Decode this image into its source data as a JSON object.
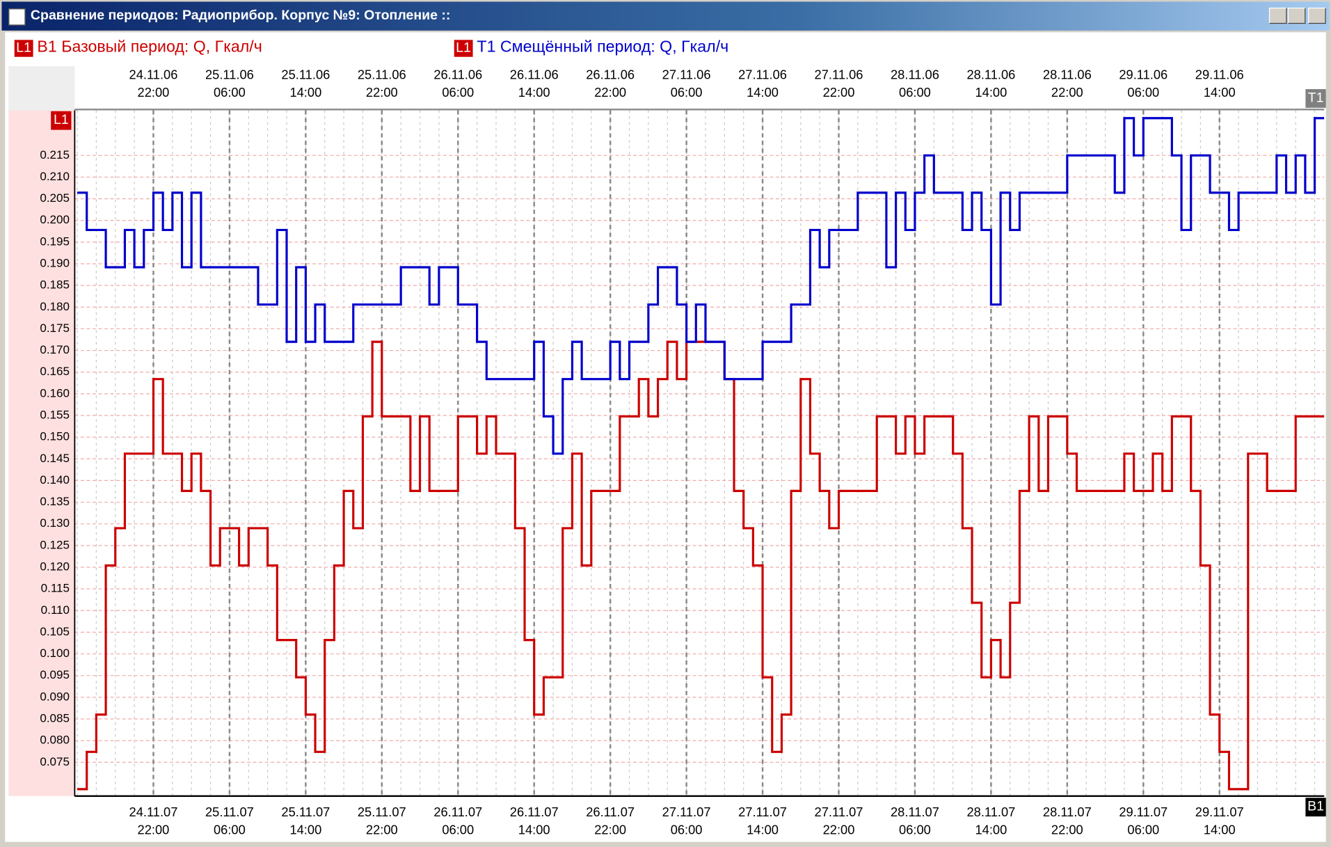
{
  "window_title": "Сравнение периодов: Радиоприбор. Корпус №9: Отопление ::",
  "chart_data": {
    "type": "line",
    "y_axis_label": "L1",
    "x_axis_label": "T1",
    "x2_axis_label": "B1",
    "xlim": [
      "24.11.06 14:00",
      "30.11.06 01:00"
    ],
    "x2lim": [
      "24.11.07 14:00",
      "30.11.07 01:00"
    ],
    "xticks": [
      "24.11.06 22:00",
      "25.11.06 06:00",
      "25.11.06 14:00",
      "25.11.06 22:00",
      "26.11.06 06:00",
      "26.11.06 14:00",
      "26.11.06 22:00",
      "27.11.06 06:00",
      "27.11.06 14:00",
      "27.11.06 22:00",
      "28.11.06 06:00",
      "28.11.06 14:00",
      "28.11.06 22:00",
      "29.11.06 06:00",
      "29.11.06 14:00"
    ],
    "x2ticks": [
      "24.11.07 22:00",
      "25.11.07 06:00",
      "25.11.07 14:00",
      "25.11.07 22:00",
      "26.11.07 06:00",
      "26.11.07 14:00",
      "26.11.07 22:00",
      "27.11.07 06:00",
      "27.11.07 14:00",
      "27.11.07 22:00",
      "28.11.07 06:00",
      "28.11.07 14:00",
      "28.11.07 22:00",
      "29.11.07 06:00",
      "29.11.07 14:00"
    ],
    "ylim": [
      0.0672,
      0.2254
    ],
    "yticks": [
      0.075,
      {
        "value": 0.08,
        "label": "0.080"
      },
      0.085,
      {
        "value": 0.09,
        "label": "0.090"
      },
      0.095,
      {
        "value": 0.1,
        "label": "0.100"
      },
      0.105,
      {
        "value": 0.11,
        "label": "0.110"
      },
      0.115,
      {
        "value": 0.12,
        "label": "0.120"
      },
      0.125,
      {
        "value": 0.13,
        "label": "0.130"
      },
      0.135,
      {
        "value": 0.14,
        "label": "0.140"
      },
      0.145,
      {
        "value": 0.15,
        "label": "0.150"
      },
      0.155,
      {
        "value": 0.16,
        "label": "0.160"
      },
      0.165,
      {
        "value": 0.17,
        "label": "0.170"
      },
      0.175,
      {
        "value": 0.18,
        "label": "0.180"
      },
      0.185,
      {
        "value": 0.19,
        "label": "0.190"
      },
      0.195,
      {
        "value": 0.2,
        "label": "0.200"
      },
      0.205,
      {
        "value": 0.21,
        "label": "0.210"
      },
      0.215
    ],
    "grid": true,
    "series": [
      {
        "name": "B1 Базовый период: Q, Гкал/ч",
        "marker_label": "L1",
        "color": "#cc0000",
        "axis": "x2",
        "x": [
          "24.11.07 14:00",
          "24.11.07 15:00",
          "24.11.07 16:00",
          "24.11.07 17:00",
          "24.11.07 18:00",
          "24.11.07 19:00",
          "24.11.07 20:00",
          "24.11.07 21:00",
          "24.11.07 22:00",
          "24.11.07 23:00",
          "25.11.07 00:00",
          "25.11.07 01:00",
          "25.11.07 02:00",
          "25.11.07 03:00",
          "25.11.07 04:00",
          "25.11.07 05:00",
          "25.11.07 06:00",
          "25.11.07 07:00",
          "25.11.07 08:00",
          "25.11.07 09:00",
          "25.11.07 10:00",
          "25.11.07 11:00",
          "25.11.07 12:00",
          "25.11.07 13:00",
          "25.11.07 14:00",
          "25.11.07 15:00",
          "25.11.07 16:00",
          "25.11.07 17:00",
          "25.11.07 18:00",
          "25.11.07 19:00",
          "25.11.07 20:00",
          "25.11.07 21:00",
          "25.11.07 22:00",
          "25.11.07 23:00",
          "26.11.07 00:00",
          "26.11.07 01:00",
          "26.11.07 02:00",
          "26.11.07 03:00",
          "26.11.07 04:00",
          "26.11.07 05:00",
          "26.11.07 06:00",
          "26.11.07 07:00",
          "26.11.07 08:00",
          "26.11.07 09:00",
          "26.11.07 10:00",
          "26.11.07 11:00",
          "26.11.07 12:00",
          "26.11.07 13:00",
          "26.11.07 14:00",
          "26.11.07 15:00",
          "26.11.07 16:00",
          "26.11.07 17:00",
          "26.11.07 18:00",
          "26.11.07 19:00",
          "26.11.07 20:00",
          "26.11.07 21:00",
          "26.11.07 22:00",
          "26.11.07 23:00",
          "27.11.07 00:00",
          "27.11.07 01:00",
          "27.11.07 02:00",
          "27.11.07 03:00",
          "27.11.07 04:00",
          "27.11.07 05:00",
          "27.11.07 06:00",
          "27.11.07 07:00",
          "27.11.07 08:00",
          "27.11.07 09:00",
          "27.11.07 10:00",
          "27.11.07 11:00",
          "27.11.07 12:00",
          "27.11.07 13:00",
          "27.11.07 14:00",
          "27.11.07 15:00",
          "27.11.07 16:00",
          "27.11.07 17:00",
          "27.11.07 18:00",
          "27.11.07 19:00",
          "27.11.07 20:00",
          "27.11.07 21:00",
          "27.11.07 22:00",
          "27.11.07 23:00",
          "28.11.07 00:00",
          "28.11.07 01:00",
          "28.11.07 02:00",
          "28.11.07 03:00",
          "28.11.07 04:00",
          "28.11.07 05:00",
          "28.11.07 06:00",
          "28.11.07 07:00",
          "28.11.07 08:00",
          "28.11.07 09:00",
          "28.11.07 10:00",
          "28.11.07 11:00",
          "28.11.07 12:00",
          "28.11.07 13:00",
          "28.11.07 14:00",
          "28.11.07 15:00",
          "28.11.07 16:00",
          "28.11.07 17:00",
          "28.11.07 18:00",
          "28.11.07 19:00",
          "28.11.07 20:00",
          "28.11.07 21:00",
          "28.11.07 22:00",
          "28.11.07 23:00",
          "29.11.07 00:00",
          "29.11.07 01:00",
          "29.11.07 02:00",
          "29.11.07 03:00",
          "29.11.07 04:00",
          "29.11.07 05:00",
          "29.11.07 06:00",
          "29.11.07 07:00",
          "29.11.07 08:00",
          "29.11.07 09:00",
          "29.11.07 10:00",
          "29.11.07 11:00",
          "29.11.07 12:00",
          "29.11.07 13:00",
          "29.11.07 14:00",
          "29.11.07 15:00",
          "29.11.07 16:00",
          "29.11.07 17:00",
          "29.11.07 18:00",
          "29.11.07 19:00",
          "29.11.07 20:00",
          "29.11.07 21:00",
          "29.11.07 22:00",
          "29.11.07 23:00",
          "30.11.07 00:00"
        ],
        "values": [
          0.0688,
          0.0774,
          0.086,
          0.1204,
          0.129,
          0.1462,
          0.1462,
          0.1462,
          0.1634,
          0.1462,
          0.1462,
          0.1376,
          0.1462,
          0.1376,
          0.1204,
          0.129,
          0.129,
          0.1204,
          0.129,
          0.129,
          0.1204,
          0.1032,
          0.1032,
          0.0946,
          0.086,
          0.0774,
          0.1032,
          0.1204,
          0.1376,
          0.129,
          0.1548,
          0.172,
          0.1548,
          0.1548,
          0.1548,
          0.1376,
          0.1548,
          0.1376,
          0.1376,
          0.1376,
          0.1548,
          0.1548,
          0.1462,
          0.1548,
          0.1462,
          0.1462,
          0.129,
          0.1032,
          0.086,
          0.0946,
          0.0946,
          0.129,
          0.1462,
          0.1204,
          0.1376,
          0.1376,
          0.1376,
          0.1548,
          0.1548,
          0.1634,
          0.1548,
          0.1634,
          0.172,
          0.1634,
          0.172,
          0.172,
          0.172,
          0.172,
          0.1634,
          0.1376,
          0.129,
          0.1204,
          0.0946,
          0.0774,
          0.086,
          0.1376,
          0.1634,
          0.1462,
          0.1376,
          0.129,
          0.1376,
          0.1376,
          0.1376,
          0.1376,
          0.1548,
          0.1548,
          0.1462,
          0.1548,
          0.1462,
          0.1548,
          0.1548,
          0.1548,
          0.1462,
          0.129,
          0.1118,
          0.0946,
          0.1032,
          0.0946,
          0.1118,
          0.1376,
          0.1548,
          0.1376,
          0.1548,
          0.1548,
          0.1462,
          0.1376,
          0.1376,
          0.1376,
          0.1376,
          0.1376,
          0.1462,
          0.1376,
          0.1376,
          0.1462,
          0.1376,
          0.1548,
          0.1548,
          0.1376,
          0.1204,
          0.086,
          0.0774,
          0.0688,
          0.0688,
          0.1462,
          0.1462,
          0.1376,
          0.1376,
          0.1376,
          0.1548,
          0.1548,
          0.1548
        ]
      },
      {
        "name": "T1 Смещённый период: Q, Гкал/ч",
        "marker_label": "L1",
        "color": "#0000cc",
        "axis": "x",
        "x": [
          "24.11.06 14:00",
          "24.11.06 15:00",
          "24.11.06 16:00",
          "24.11.06 17:00",
          "24.11.06 18:00",
          "24.11.06 19:00",
          "24.11.06 20:00",
          "24.11.06 21:00",
          "24.11.06 22:00",
          "24.11.06 23:00",
          "25.11.06 00:00",
          "25.11.06 01:00",
          "25.11.06 02:00",
          "25.11.06 03:00",
          "25.11.06 04:00",
          "25.11.06 05:00",
          "25.11.06 06:00",
          "25.11.06 07:00",
          "25.11.06 08:00",
          "25.11.06 09:00",
          "25.11.06 10:00",
          "25.11.06 11:00",
          "25.11.06 12:00",
          "25.11.06 13:00",
          "25.11.06 14:00",
          "25.11.06 15:00",
          "25.11.06 16:00",
          "25.11.06 17:00",
          "25.11.06 18:00",
          "25.11.06 19:00",
          "25.11.06 20:00",
          "25.11.06 21:00",
          "25.11.06 22:00",
          "25.11.06 23:00",
          "26.11.06 00:00",
          "26.11.06 01:00",
          "26.11.06 02:00",
          "26.11.06 03:00",
          "26.11.06 04:00",
          "26.11.06 05:00",
          "26.11.06 06:00",
          "26.11.06 07:00",
          "26.11.06 08:00",
          "26.11.06 09:00",
          "26.11.06 10:00",
          "26.11.06 11:00",
          "26.11.06 12:00",
          "26.11.06 13:00",
          "26.11.06 14:00",
          "26.11.06 15:00",
          "26.11.06 16:00",
          "26.11.06 17:00",
          "26.11.06 18:00",
          "26.11.06 19:00",
          "26.11.06 20:00",
          "26.11.06 21:00",
          "26.11.06 22:00",
          "26.11.06 23:00",
          "27.11.06 00:00",
          "27.11.06 01:00",
          "27.11.06 02:00",
          "27.11.06 03:00",
          "27.11.06 04:00",
          "27.11.06 05:00",
          "27.11.06 06:00",
          "27.11.06 07:00",
          "27.11.06 08:00",
          "27.11.06 09:00",
          "27.11.06 10:00",
          "27.11.06 11:00",
          "27.11.06 12:00",
          "27.11.06 13:00",
          "27.11.06 14:00",
          "27.11.06 15:00",
          "27.11.06 16:00",
          "27.11.06 17:00",
          "27.11.06 18:00",
          "27.11.06 19:00",
          "27.11.06 20:00",
          "27.11.06 21:00",
          "27.11.06 22:00",
          "27.11.06 23:00",
          "28.11.06 00:00",
          "28.11.06 01:00",
          "28.11.06 02:00",
          "28.11.06 03:00",
          "28.11.06 04:00",
          "28.11.06 05:00",
          "28.11.06 06:00",
          "28.11.06 07:00",
          "28.11.06 08:00",
          "28.11.06 09:00",
          "28.11.06 10:00",
          "28.11.06 11:00",
          "28.11.06 12:00",
          "28.11.06 13:00",
          "28.11.06 14:00",
          "28.11.06 15:00",
          "28.11.06 16:00",
          "28.11.06 17:00",
          "28.11.06 18:00",
          "28.11.06 19:00",
          "28.11.06 20:00",
          "28.11.06 21:00",
          "28.11.06 22:00",
          "28.11.06 23:00",
          "29.11.06 00:00",
          "29.11.06 01:00",
          "29.11.06 02:00",
          "29.11.06 03:00",
          "29.11.06 04:00",
          "29.11.06 05:00",
          "29.11.06 06:00",
          "29.11.06 07:00",
          "29.11.06 08:00",
          "29.11.06 09:00",
          "29.11.06 10:00",
          "29.11.06 11:00",
          "29.11.06 12:00",
          "29.11.06 13:00",
          "29.11.06 14:00",
          "29.11.06 15:00",
          "29.11.06 16:00",
          "29.11.06 17:00",
          "29.11.06 18:00",
          "29.11.06 19:00",
          "29.11.06 20:00",
          "29.11.06 21:00",
          "29.11.06 22:00",
          "29.11.06 23:00",
          "30.11.06 00:00"
        ],
        "values": [
          0.2064,
          0.1978,
          0.1978,
          0.1892,
          0.1892,
          0.1978,
          0.1892,
          0.1978,
          0.2064,
          0.1978,
          0.2064,
          0.1892,
          0.2064,
          0.1892,
          0.1892,
          0.1892,
          0.1892,
          0.1892,
          0.1892,
          0.1806,
          0.1806,
          0.1978,
          0.172,
          0.1892,
          0.172,
          0.1806,
          0.172,
          0.172,
          0.172,
          0.1806,
          0.1806,
          0.1806,
          0.1806,
          0.1806,
          0.1892,
          0.1892,
          0.1892,
          0.1806,
          0.1892,
          0.1892,
          0.1806,
          0.1806,
          0.172,
          0.1634,
          0.1634,
          0.1634,
          0.1634,
          0.1634,
          0.172,
          0.1548,
          0.1462,
          0.1634,
          0.172,
          0.1634,
          0.1634,
          0.1634,
          0.172,
          0.1634,
          0.172,
          0.172,
          0.1806,
          0.1892,
          0.1892,
          0.1806,
          0.172,
          0.1806,
          0.172,
          0.172,
          0.1634,
          0.1634,
          0.1634,
          0.1634,
          0.172,
          0.172,
          0.172,
          0.1806,
          0.1806,
          0.1978,
          0.1892,
          0.1978,
          0.1978,
          0.1978,
          0.2064,
          0.2064,
          0.2064,
          0.1892,
          0.2064,
          0.1978,
          0.2064,
          0.215,
          0.2064,
          0.2064,
          0.2064,
          0.1978,
          0.2064,
          0.1978,
          0.1806,
          0.2064,
          0.1978,
          0.2064,
          0.2064,
          0.2064,
          0.2064,
          0.2064,
          0.215,
          0.215,
          0.215,
          0.215,
          0.215,
          0.2064,
          0.2236,
          0.215,
          0.2236,
          0.2236,
          0.2236,
          0.215,
          0.1978,
          0.215,
          0.215,
          0.2064,
          0.2064,
          0.1978,
          0.2064,
          0.2064,
          0.2064,
          0.2064,
          0.215,
          0.2064,
          0.215,
          0.2064,
          0.2236
        ]
      }
    ]
  }
}
